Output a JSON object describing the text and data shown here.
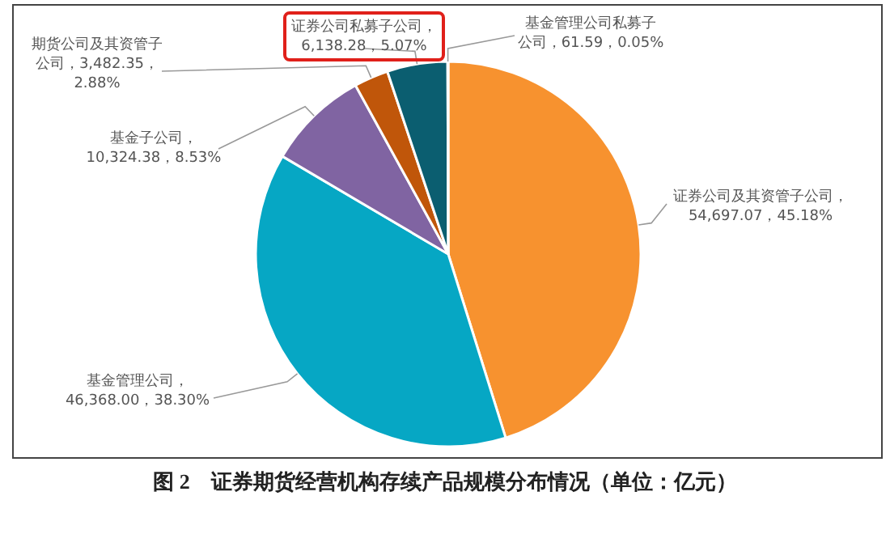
{
  "chart_data": {
    "type": "pie",
    "title": "图 2　证券期货经营机构存续产品规模分布情况（单位：亿元）",
    "categories": [
      "证券公司及其资管子公司",
      "基金管理公司",
      "基金子公司",
      "期货公司及其资管子公司",
      "证券公司私募子公司",
      "基金管理公司私募子公司"
    ],
    "values": [
      54697.07,
      46368.0,
      10324.38,
      3482.35,
      6138.28,
      61.59
    ],
    "value_labels": [
      "，54,697.07，45.18%",
      "，46,368.00，38.30%",
      "，10,324.38，8.53%",
      "，3,482.35，2.88%",
      "，6,138.28，5.07%",
      "，61.59，0.05%"
    ],
    "colors": [
      "#f7922f",
      "#06a7c4",
      "#8064a2",
      "#c0560a",
      "#0b5e70",
      "#6b8e9b"
    ]
  }
}
